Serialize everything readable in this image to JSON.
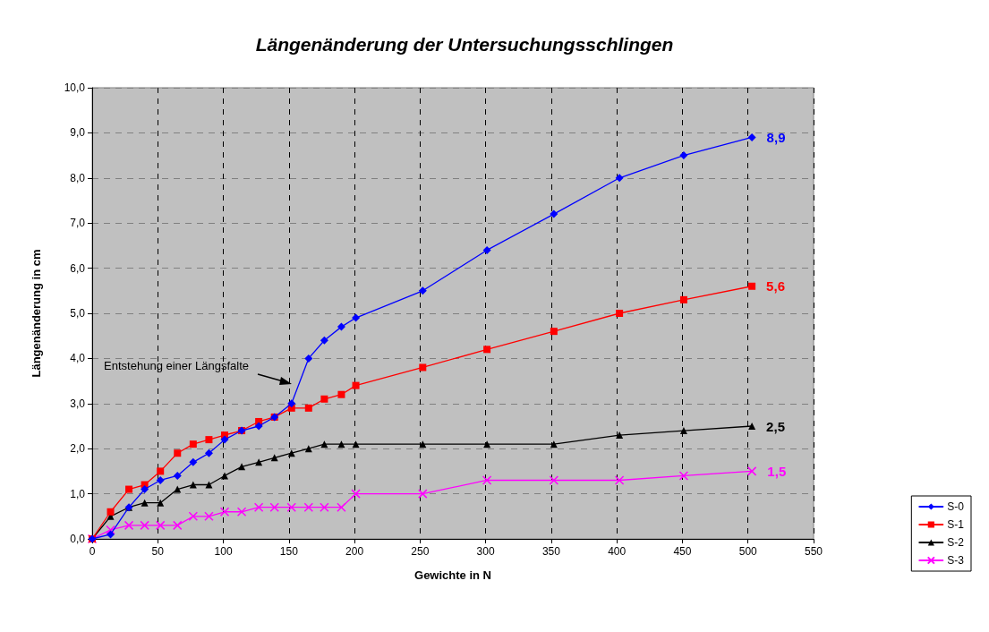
{
  "chart_data": {
    "type": "line",
    "title": "Längenänderung der Untersuchungsschlingen",
    "xlabel": "Gewichte in N",
    "ylabel": "Längenänderung in cm",
    "x": [
      0,
      14,
      28,
      40,
      52,
      65,
      77,
      89,
      101,
      114,
      127,
      139,
      152,
      165,
      177,
      190,
      201,
      252,
      301,
      352,
      402,
      451,
      503
    ],
    "series": [
      {
        "name": "S-0",
        "color": "#0000ff",
        "marker": "diamond",
        "values": [
          0,
          0.1,
          0.7,
          1.1,
          1.3,
          1.4,
          1.7,
          1.9,
          2.2,
          2.4,
          2.5,
          2.7,
          3.0,
          4.0,
          4.4,
          4.7,
          4.9,
          5.5,
          6.4,
          7.2,
          8.0,
          8.5,
          8.9
        ],
        "value_labels": [
          null,
          null,
          null,
          null,
          null,
          null,
          null,
          null,
          null,
          null,
          null,
          null,
          null,
          null,
          null,
          null,
          null,
          null,
          null,
          null,
          null,
          null,
          "8,9"
        ]
      },
      {
        "name": "S-1",
        "color": "#ff0000",
        "marker": "square",
        "values": [
          0,
          0.6,
          1.1,
          1.2,
          1.5,
          1.9,
          2.1,
          2.2,
          2.3,
          2.4,
          2.6,
          2.7,
          2.9,
          2.9,
          3.1,
          3.2,
          3.4,
          3.8,
          4.2,
          4.6,
          5.0,
          5.3,
          5.6
        ],
        "value_labels": [
          null,
          null,
          null,
          null,
          null,
          null,
          null,
          null,
          null,
          null,
          null,
          null,
          null,
          null,
          null,
          null,
          null,
          null,
          null,
          null,
          null,
          null,
          "5,6"
        ]
      },
      {
        "name": "S-2",
        "color": "#000000",
        "marker": "triangle",
        "values": [
          0,
          0.5,
          0.7,
          0.8,
          0.8,
          1.1,
          1.2,
          1.2,
          1.4,
          1.6,
          1.7,
          1.8,
          1.9,
          2.0,
          2.1,
          2.1,
          2.1,
          2.1,
          2.1,
          2.1,
          2.3,
          2.4,
          2.5
        ],
        "value_labels": [
          null,
          null,
          null,
          null,
          null,
          null,
          null,
          null,
          null,
          null,
          null,
          null,
          null,
          null,
          null,
          null,
          null,
          null,
          null,
          null,
          null,
          null,
          "2,5"
        ]
      },
      {
        "name": "S-3",
        "color": "#ff00ff",
        "marker": "cross",
        "values": [
          0,
          0.2,
          0.3,
          0.3,
          0.3,
          0.3,
          0.5,
          0.5,
          0.6,
          0.6,
          0.7,
          0.7,
          0.7,
          0.7,
          0.7,
          0.7,
          1.0,
          1.0,
          1.3,
          1.3,
          1.3,
          1.4,
          1.5
        ],
        "value_labels": [
          null,
          null,
          null,
          null,
          null,
          null,
          null,
          null,
          null,
          null,
          null,
          null,
          null,
          null,
          null,
          null,
          null,
          null,
          null,
          null,
          null,
          null,
          "1,5"
        ]
      }
    ],
    "xlim": [
      0,
      550
    ],
    "xticks": [
      0,
      50,
      100,
      150,
      200,
      250,
      300,
      350,
      400,
      450,
      500,
      550
    ],
    "ylim": [
      0,
      10
    ],
    "yticks": [
      {
        "value": 0,
        "label": "0,0"
      },
      {
        "value": 1,
        "label": "1,0"
      },
      {
        "value": 2,
        "label": "2,0"
      },
      {
        "value": 3,
        "label": "3,0"
      },
      {
        "value": 4,
        "label": "4,0"
      },
      {
        "value": 5,
        "label": "5,0"
      },
      {
        "value": 6,
        "label": "6,0"
      },
      {
        "value": 7,
        "label": "7,0"
      },
      {
        "value": 8,
        "label": "8,0"
      },
      {
        "value": 9,
        "label": "9,0"
      },
      {
        "value": 10,
        "label": "10,0"
      }
    ],
    "annotations": [
      "Entstehung einer Längsfalte"
    ],
    "grid": true,
    "legend": "bottom right",
    "line_style": "solid"
  }
}
